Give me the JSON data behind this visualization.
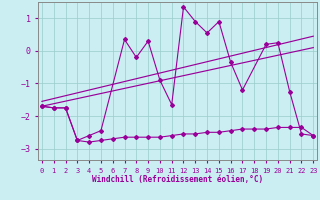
{
  "title": "",
  "xlabel": "Windchill (Refroidissement éolien,°C)",
  "background_color": "#cbeef3",
  "line_color": "#990099",
  "x_data": [
    0,
    1,
    2,
    3,
    4,
    5,
    6,
    7,
    8,
    9,
    10,
    11,
    12,
    13,
    14,
    15,
    16,
    17,
    18,
    19,
    20,
    21,
    22,
    23
  ],
  "line_top": [
    -1.7,
    -1.75,
    -1.75,
    -2.75,
    -2.6,
    -2.45,
    0.35,
    -0.2,
    0.3,
    -0.9,
    -1.65,
    1.35,
    0.9,
    0.55,
    0.9,
    -0.35,
    -1.2,
    0.2,
    0.25,
    -1.25,
    -2.55,
    -2.6
  ],
  "line_top_x": [
    0,
    1,
    2,
    3,
    4,
    5,
    7,
    8,
    9,
    10,
    11,
    12,
    13,
    14,
    15,
    16,
    17,
    19,
    20,
    21,
    22,
    23
  ],
  "line_bot": [
    -1.7,
    -1.75,
    -1.75,
    -2.75,
    -2.8,
    -2.75,
    -2.7,
    -2.65,
    -2.65,
    -2.65,
    -2.65,
    -2.6,
    -2.55,
    -2.55,
    -2.5,
    -2.5,
    -2.45,
    -2.4,
    -2.4,
    -2.4,
    -2.35,
    -2.35,
    -2.35,
    -2.6
  ],
  "trend1_x": [
    0,
    23
  ],
  "trend1_y": [
    -1.55,
    0.45
  ],
  "trend2_x": [
    0,
    23
  ],
  "trend2_y": [
    -1.7,
    0.1
  ],
  "ylim": [
    -3.35,
    1.5
  ],
  "xlim": [
    -0.3,
    23.3
  ],
  "yticks": [
    -3,
    -2,
    -1,
    0,
    1
  ]
}
